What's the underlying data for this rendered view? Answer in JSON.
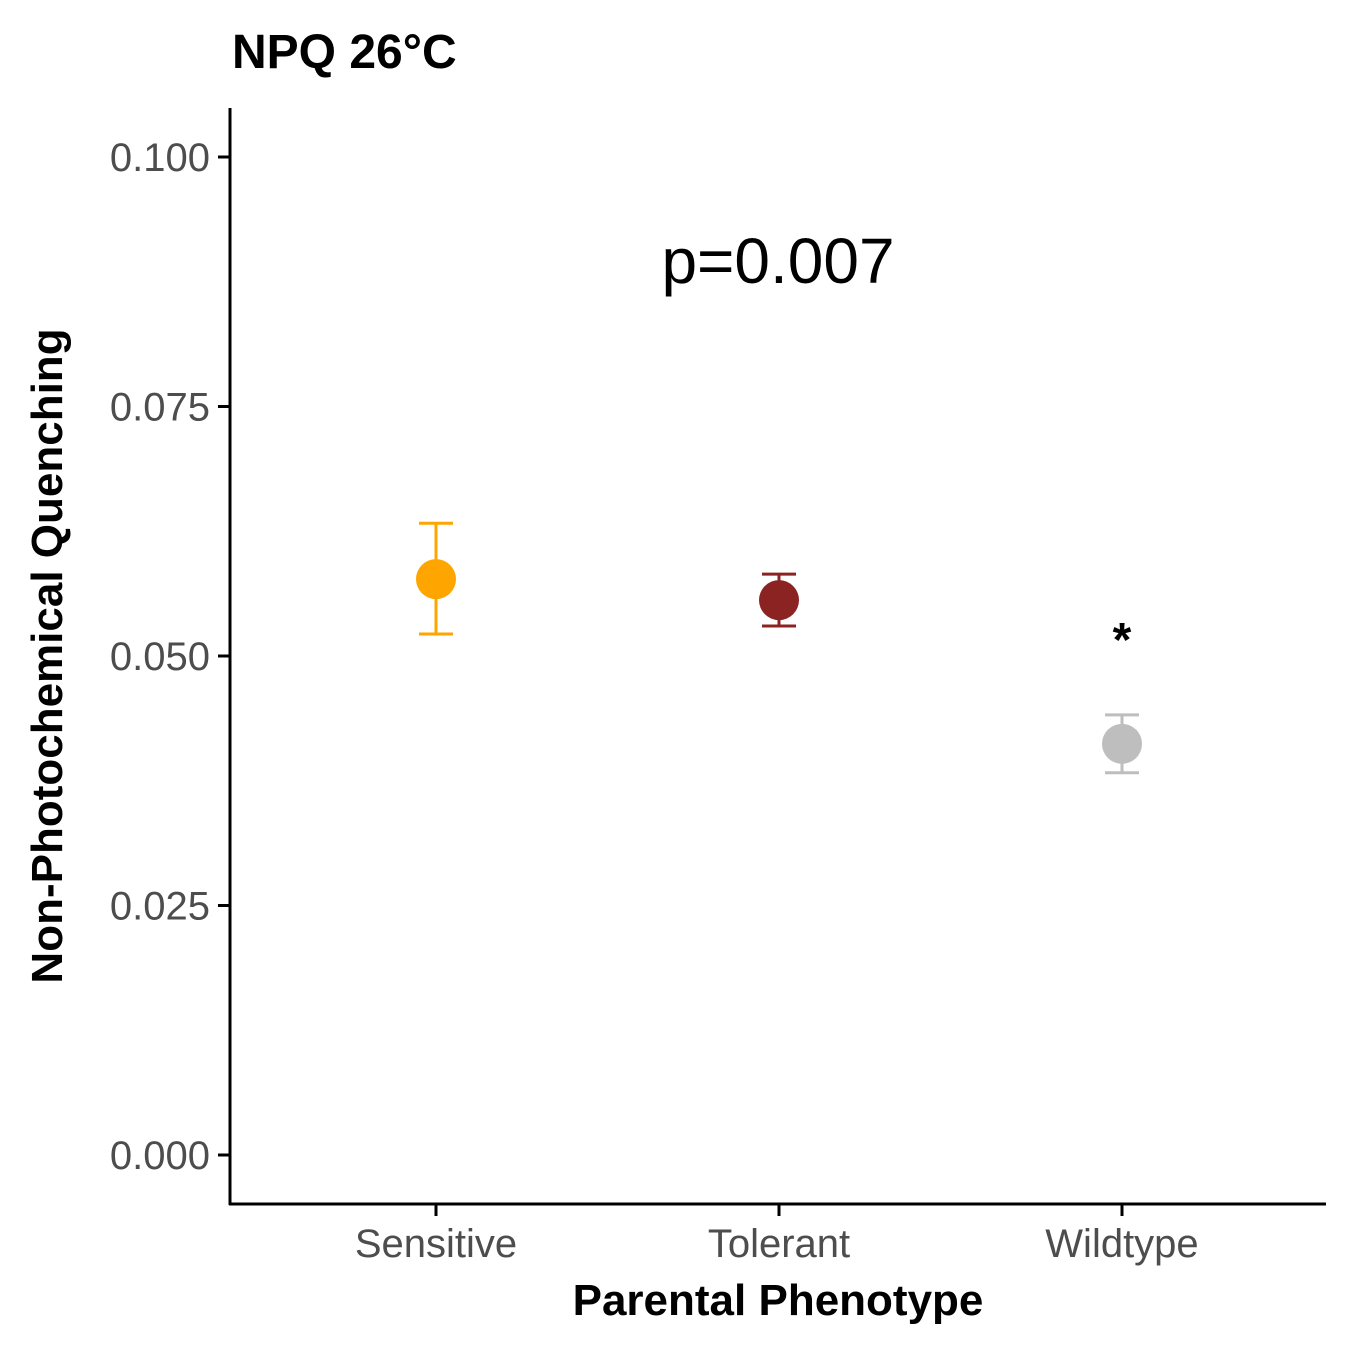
{
  "chart_data": {
    "type": "scatter",
    "title": "NPQ 26°C",
    "xlabel": "Parental Phenotype",
    "ylabel": "Non-Photochemical Quenching",
    "categories": [
      "Sensitive",
      "Tolerant",
      "Wildtype"
    ],
    "ylim": [
      -0.005,
      0.105
    ],
    "yticks": [
      "0.000",
      "0.025",
      "0.050",
      "0.075",
      "0.100"
    ],
    "points": [
      {
        "category": "Sensitive",
        "mean": 0.0577,
        "lower": 0.0522,
        "upper": 0.0633,
        "color": "#FFA500"
      },
      {
        "category": "Tolerant",
        "mean": 0.0556,
        "lower": 0.053,
        "upper": 0.0582,
        "color": "#8B2323"
      },
      {
        "category": "Wildtype",
        "mean": 0.0412,
        "lower": 0.0383,
        "upper": 0.0441,
        "color": "#BEBEBE"
      }
    ],
    "annotations": {
      "p_value": "p=0.007",
      "significance": {
        "category": "Wildtype",
        "label": "*"
      }
    },
    "grid": false,
    "legend": "none"
  }
}
